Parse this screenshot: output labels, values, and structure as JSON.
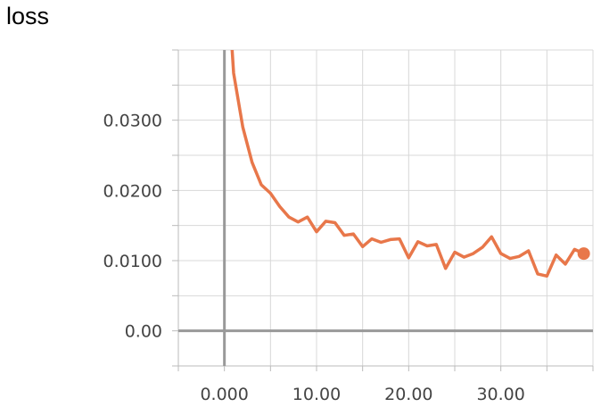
{
  "chart_data": {
    "type": "line",
    "title": "loss",
    "xlabel": "",
    "ylabel": "",
    "xlim": [
      -5,
      40
    ],
    "ylim": [
      -0.005,
      0.04
    ],
    "xticks": [
      0,
      10,
      20,
      30
    ],
    "xtick_labels": [
      "0.000",
      "10.00",
      "20.00",
      "30.00"
    ],
    "yticks": [
      0,
      0.01,
      0.02,
      0.03
    ],
    "ytick_labels": [
      "0.00",
      "0.0100",
      "0.0200",
      "0.0300"
    ],
    "grid": true,
    "series": [
      {
        "color": "#e8774a",
        "x": [
          1,
          2,
          3,
          4,
          5,
          6,
          7,
          8,
          9,
          10,
          11,
          12,
          13,
          14,
          15,
          16,
          17,
          18,
          19,
          20,
          21,
          22,
          23,
          24,
          25,
          26,
          27,
          28,
          29,
          30,
          31,
          32,
          33,
          34,
          35,
          36,
          37,
          38,
          39
        ],
        "y": [
          0.0367,
          0.029,
          0.024,
          0.0208,
          0.0196,
          0.0177,
          0.0162,
          0.0155,
          0.0162,
          0.0141,
          0.0156,
          0.0154,
          0.0136,
          0.0138,
          0.012,
          0.0131,
          0.0126,
          0.013,
          0.0131,
          0.0104,
          0.0127,
          0.0121,
          0.0123,
          0.0089,
          0.0112,
          0.0105,
          0.011,
          0.0119,
          0.0134,
          0.011,
          0.0103,
          0.0106,
          0.0114,
          0.0081,
          0.0078,
          0.0108,
          0.0095,
          0.0116,
          0.011
        ],
        "last_point_marker": true
      }
    ]
  }
}
